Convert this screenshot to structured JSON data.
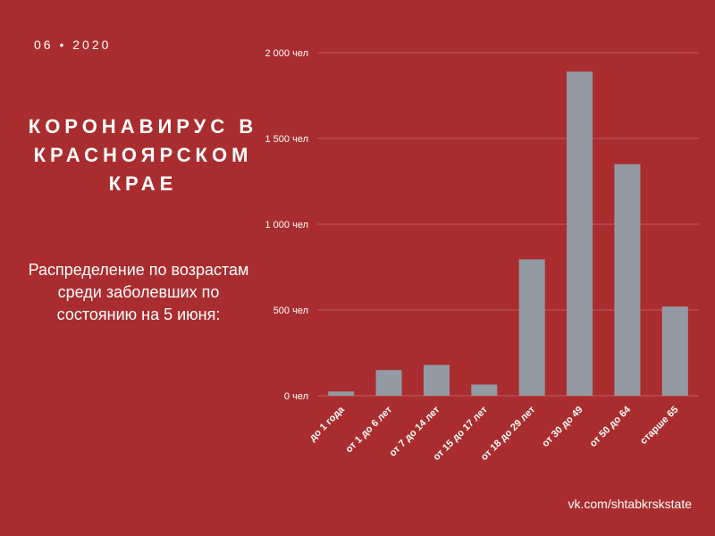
{
  "header": {
    "date": "06 • 2020",
    "title": "КОРОНАВИРУС В КРАСНОЯРСКОМ КРАЕ",
    "subtitle": "Распределение по возрастам среди заболевших по состоянию на 5 июня:"
  },
  "footer": {
    "source": "vk.com/shtabkrskstate"
  },
  "colors": {
    "background": "#a92d2f",
    "bar": "#939aa3",
    "grid": "#c45a5c",
    "text": "#ffffff"
  },
  "chart_data": {
    "type": "bar",
    "categories": [
      "до 1 года",
      "от 1 до 6 лет",
      "от 7 до 14 лет",
      "от 15 до 17 лет",
      "от 18 до 29 лет",
      "от 30 до 49",
      "от 50 до 64",
      "старше 65"
    ],
    "values": [
      25,
      150,
      180,
      65,
      795,
      1890,
      1350,
      520
    ],
    "ylim": [
      0,
      2000
    ],
    "yticks": [
      0,
      500,
      1000,
      1500,
      2000
    ],
    "ytick_labels": [
      "0 чел",
      "500 чел",
      "1 000 чел",
      "1 500 чел",
      "2 000 чел"
    ],
    "grid": true,
    "title": "",
    "xlabel": "",
    "ylabel": ""
  }
}
